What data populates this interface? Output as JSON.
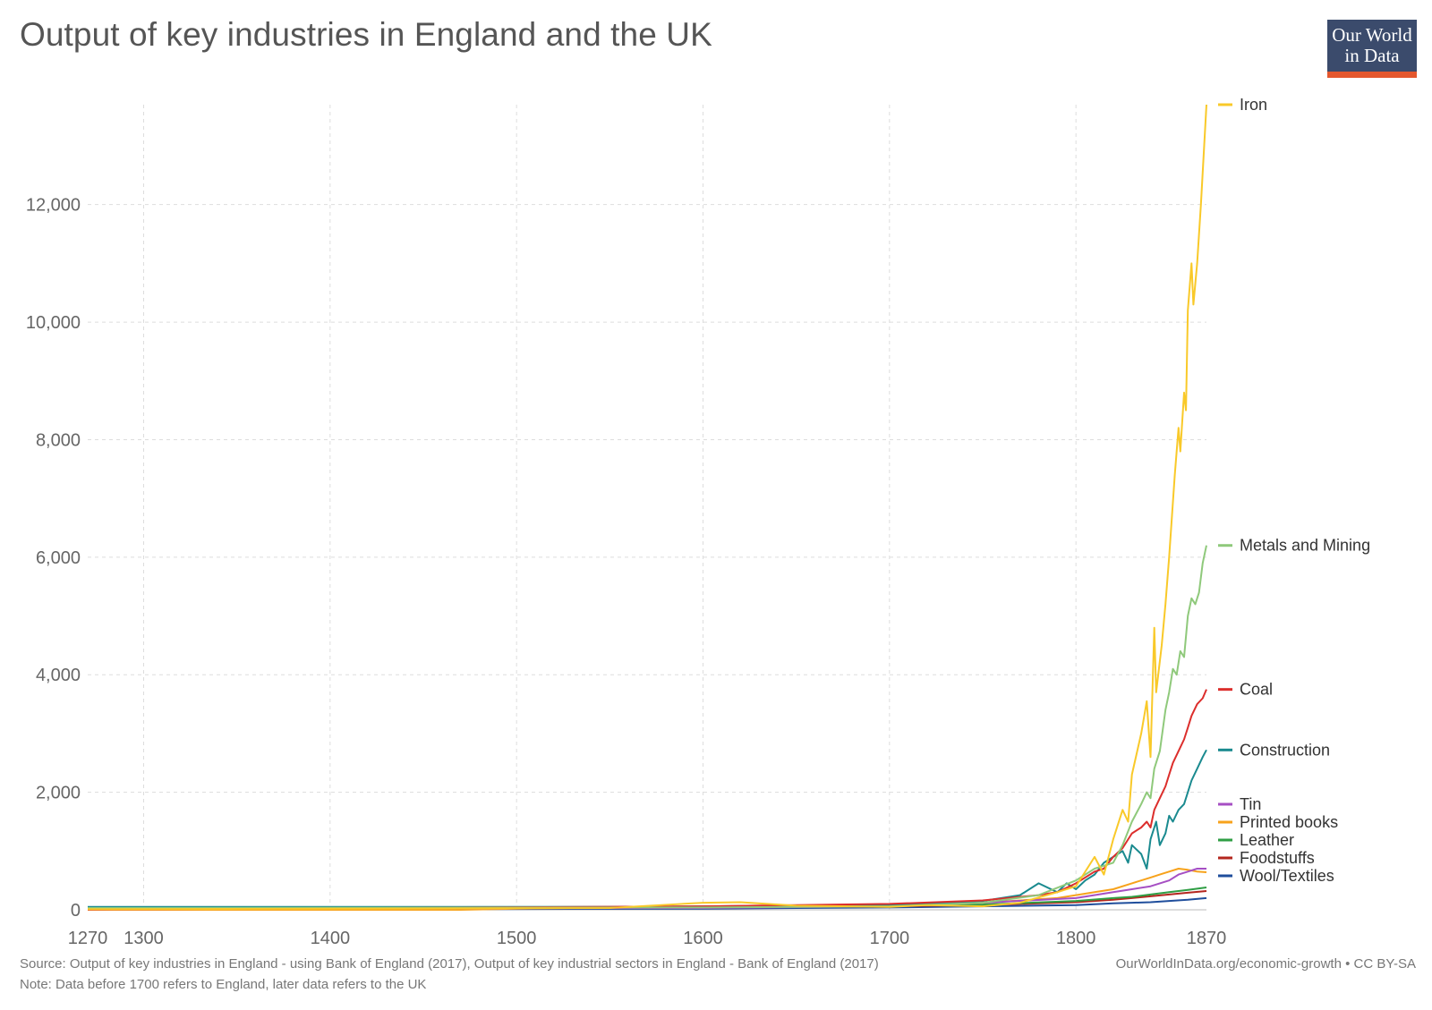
{
  "header": {
    "title": "Output of key industries in England and the UK",
    "logo_line1": "Our World",
    "logo_line2": "in Data"
  },
  "footer": {
    "source": "Source: Output of key industries in England - using Bank of England (2017), Output of key industrial sectors in England - Bank of England (2017)",
    "note": "Note: Data before 1700 refers to England, later data refers to the UK",
    "credit": "OurWorldInData.org/economic-growth • CC BY-SA"
  },
  "chart_data": {
    "type": "line",
    "title": "Output of key industries in England and the UK",
    "xlabel": "",
    "ylabel": "",
    "xlim": [
      1270,
      1870
    ],
    "ylim": [
      0,
      13700
    ],
    "x_ticks": [
      1270,
      1300,
      1400,
      1500,
      1600,
      1700,
      1800,
      1870
    ],
    "x_tick_labels": [
      "1270",
      "1300",
      "1400",
      "1500",
      "1600",
      "1700",
      "1800",
      "1870"
    ],
    "y_ticks": [
      0,
      2000,
      4000,
      6000,
      8000,
      10000,
      12000
    ],
    "y_tick_labels": [
      "0",
      "2,000",
      "4,000",
      "6,000",
      "8,000",
      "10,000",
      "12,000"
    ],
    "grid": true,
    "legend_position": "right",
    "series": [
      {
        "name": "Iron",
        "color": "#f9c929",
        "label_value": 13700,
        "points": [
          [
            1270,
            10
          ],
          [
            1550,
            30
          ],
          [
            1600,
            120
          ],
          [
            1620,
            130
          ],
          [
            1650,
            70
          ],
          [
            1700,
            50
          ],
          [
            1720,
            80
          ],
          [
            1750,
            60
          ],
          [
            1770,
            120
          ],
          [
            1790,
            300
          ],
          [
            1800,
            400
          ],
          [
            1810,
            900
          ],
          [
            1815,
            600
          ],
          [
            1820,
            1200
          ],
          [
            1825,
            1700
          ],
          [
            1828,
            1500
          ],
          [
            1830,
            2300
          ],
          [
            1835,
            3000
          ],
          [
            1838,
            3550
          ],
          [
            1840,
            2600
          ],
          [
            1842,
            4800
          ],
          [
            1843,
            3700
          ],
          [
            1846,
            4500
          ],
          [
            1848,
            5200
          ],
          [
            1850,
            6000
          ],
          [
            1853,
            7400
          ],
          [
            1855,
            8200
          ],
          [
            1856,
            7800
          ],
          [
            1858,
            8800
          ],
          [
            1859,
            8500
          ],
          [
            1860,
            10200
          ],
          [
            1862,
            11000
          ],
          [
            1863,
            10300
          ],
          [
            1865,
            11000
          ],
          [
            1867,
            12000
          ],
          [
            1870,
            13700
          ]
        ]
      },
      {
        "name": "Metals and Mining",
        "color": "#8fc97b",
        "label_value": 6200,
        "points": [
          [
            1270,
            30
          ],
          [
            1600,
            40
          ],
          [
            1700,
            60
          ],
          [
            1750,
            120
          ],
          [
            1780,
            250
          ],
          [
            1800,
            500
          ],
          [
            1810,
            700
          ],
          [
            1820,
            800
          ],
          [
            1825,
            1100
          ],
          [
            1830,
            1500
          ],
          [
            1835,
            1800
          ],
          [
            1838,
            2000
          ],
          [
            1840,
            1900
          ],
          [
            1842,
            2400
          ],
          [
            1845,
            2700
          ],
          [
            1848,
            3400
          ],
          [
            1850,
            3700
          ],
          [
            1852,
            4100
          ],
          [
            1854,
            4000
          ],
          [
            1856,
            4400
          ],
          [
            1858,
            4300
          ],
          [
            1860,
            5000
          ],
          [
            1862,
            5300
          ],
          [
            1864,
            5200
          ],
          [
            1866,
            5400
          ],
          [
            1868,
            5900
          ],
          [
            1870,
            6200
          ]
        ]
      },
      {
        "name": "Coal",
        "color": "#dc2e2c",
        "label_value": 3750,
        "points": [
          [
            1270,
            5
          ],
          [
            1600,
            60
          ],
          [
            1650,
            80
          ],
          [
            1700,
            100
          ],
          [
            1750,
            160
          ],
          [
            1780,
            250
          ],
          [
            1790,
            300
          ],
          [
            1800,
            450
          ],
          [
            1810,
            650
          ],
          [
            1815,
            700
          ],
          [
            1820,
            900
          ],
          [
            1825,
            1050
          ],
          [
            1830,
            1300
          ],
          [
            1835,
            1400
          ],
          [
            1838,
            1500
          ],
          [
            1840,
            1400
          ],
          [
            1842,
            1700
          ],
          [
            1845,
            1900
          ],
          [
            1848,
            2100
          ],
          [
            1850,
            2300
          ],
          [
            1852,
            2500
          ],
          [
            1855,
            2700
          ],
          [
            1858,
            2900
          ],
          [
            1860,
            3100
          ],
          [
            1862,
            3300
          ],
          [
            1865,
            3500
          ],
          [
            1868,
            3600
          ],
          [
            1870,
            3750
          ]
        ]
      },
      {
        "name": "Construction",
        "color": "#1a8a8f",
        "label_value": 2720,
        "points": [
          [
            1270,
            50
          ],
          [
            1550,
            50
          ],
          [
            1600,
            60
          ],
          [
            1700,
            80
          ],
          [
            1750,
            150
          ],
          [
            1770,
            250
          ],
          [
            1780,
            450
          ],
          [
            1790,
            300
          ],
          [
            1795,
            450
          ],
          [
            1800,
            350
          ],
          [
            1805,
            500
          ],
          [
            1810,
            600
          ],
          [
            1815,
            800
          ],
          [
            1820,
            900
          ],
          [
            1825,
            1000
          ],
          [
            1828,
            800
          ],
          [
            1830,
            1100
          ],
          [
            1835,
            950
          ],
          [
            1838,
            700
          ],
          [
            1840,
            1200
          ],
          [
            1843,
            1500
          ],
          [
            1845,
            1100
          ],
          [
            1848,
            1300
          ],
          [
            1850,
            1600
          ],
          [
            1852,
            1500
          ],
          [
            1855,
            1700
          ],
          [
            1858,
            1800
          ],
          [
            1860,
            2000
          ],
          [
            1862,
            2200
          ],
          [
            1865,
            2400
          ],
          [
            1868,
            2600
          ],
          [
            1870,
            2720
          ]
        ]
      },
      {
        "name": "Tin",
        "color": "#a64fc3",
        "label_value": 700,
        "points": [
          [
            1270,
            20
          ],
          [
            1600,
            30
          ],
          [
            1700,
            60
          ],
          [
            1750,
            120
          ],
          [
            1800,
            200
          ],
          [
            1820,
            300
          ],
          [
            1830,
            350
          ],
          [
            1840,
            400
          ],
          [
            1850,
            500
          ],
          [
            1855,
            600
          ],
          [
            1860,
            650
          ],
          [
            1865,
            700
          ],
          [
            1870,
            700
          ]
        ]
      },
      {
        "name": "Printed books",
        "color": "#f7a21b",
        "label_value": 640,
        "points": [
          [
            1270,
            0
          ],
          [
            1470,
            0
          ],
          [
            1500,
            20
          ],
          [
            1600,
            60
          ],
          [
            1700,
            80
          ],
          [
            1750,
            120
          ],
          [
            1790,
            200
          ],
          [
            1800,
            250
          ],
          [
            1810,
            300
          ],
          [
            1820,
            350
          ],
          [
            1830,
            450
          ],
          [
            1840,
            550
          ],
          [
            1845,
            600
          ],
          [
            1850,
            650
          ],
          [
            1855,
            700
          ],
          [
            1860,
            680
          ],
          [
            1865,
            650
          ],
          [
            1870,
            640
          ]
        ]
      },
      {
        "name": "Leather",
        "color": "#2f9e44",
        "label_value": 380,
        "points": [
          [
            1270,
            40
          ],
          [
            1600,
            50
          ],
          [
            1700,
            70
          ],
          [
            1750,
            90
          ],
          [
            1800,
            150
          ],
          [
            1820,
            200
          ],
          [
            1830,
            220
          ],
          [
            1840,
            260
          ],
          [
            1850,
            300
          ],
          [
            1860,
            340
          ],
          [
            1870,
            380
          ]
        ]
      },
      {
        "name": "Foodstuffs",
        "color": "#b3261e",
        "label_value": 320,
        "points": [
          [
            1270,
            20
          ],
          [
            1600,
            40
          ],
          [
            1700,
            60
          ],
          [
            1750,
            80
          ],
          [
            1800,
            130
          ],
          [
            1820,
            170
          ],
          [
            1830,
            200
          ],
          [
            1840,
            230
          ],
          [
            1850,
            260
          ],
          [
            1860,
            290
          ],
          [
            1870,
            320
          ]
        ]
      },
      {
        "name": "Wool/Textiles",
        "color": "#1f4e9c",
        "label_value": 200,
        "points": [
          [
            1270,
            0
          ],
          [
            1600,
            20
          ],
          [
            1700,
            40
          ],
          [
            1750,
            60
          ],
          [
            1800,
            80
          ],
          [
            1820,
            110
          ],
          [
            1830,
            120
          ],
          [
            1840,
            130
          ],
          [
            1850,
            150
          ],
          [
            1860,
            170
          ],
          [
            1870,
            200
          ]
        ]
      }
    ],
    "legend_labels": [
      "Iron",
      "Metals and Mining",
      "Coal",
      "Construction",
      "Tin",
      "Printed books",
      "Leather",
      "Foodstuffs",
      "Wool/Textiles"
    ]
  }
}
